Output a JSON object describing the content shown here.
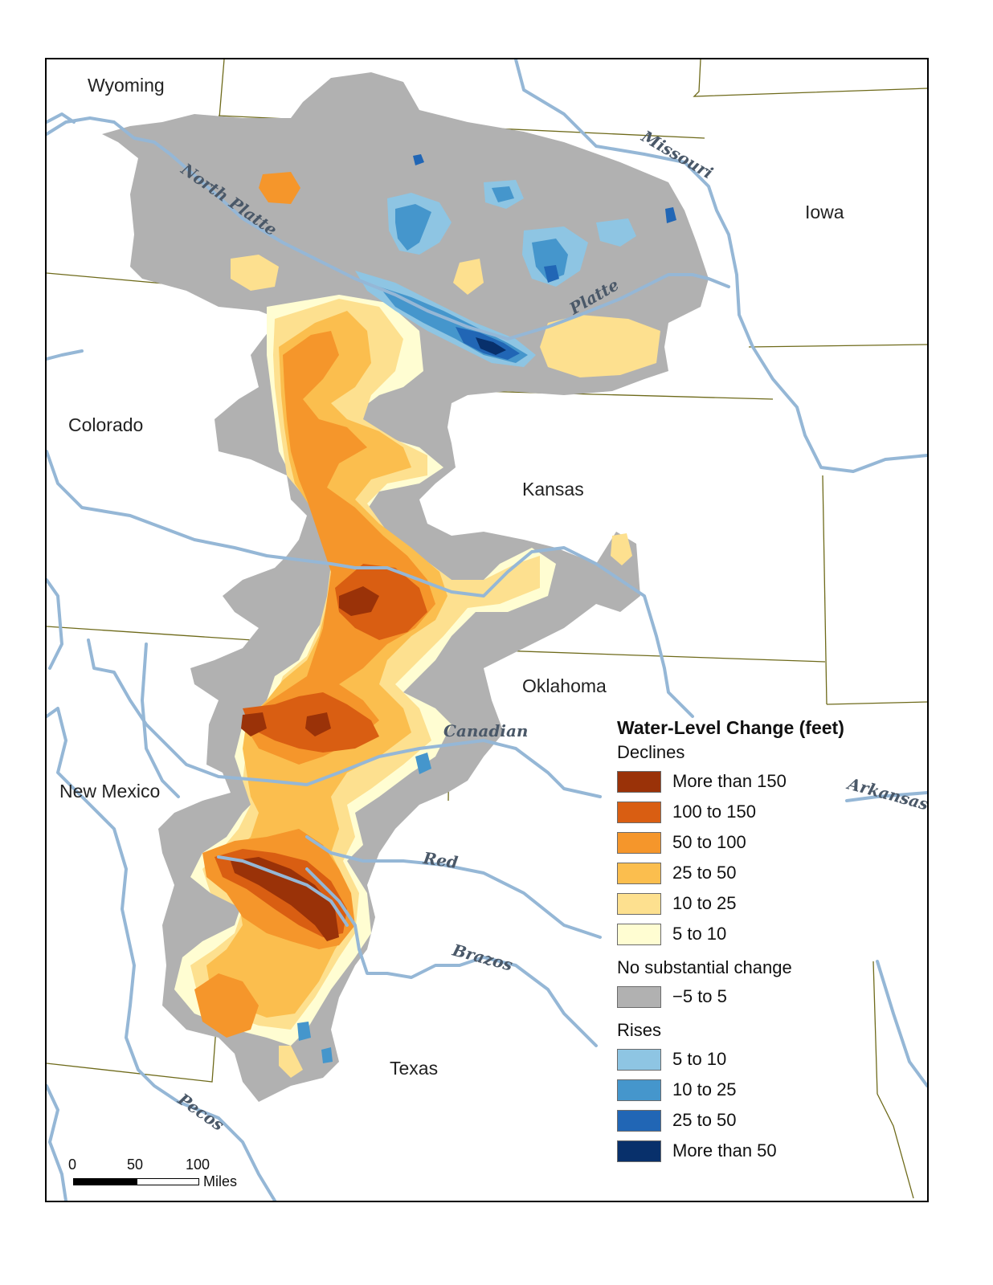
{
  "map": {
    "state_labels": [
      "Wyoming",
      "Iowa",
      "Colorado",
      "Kansas",
      "Oklahoma",
      "New Mexico",
      "Texas"
    ],
    "river_labels": [
      "North Platte",
      "Platte",
      "Missouri",
      "Canadian",
      "Arkansas",
      "Red",
      "Brazos",
      "Pecos"
    ]
  },
  "legend": {
    "title": "Water-Level Change (feet)",
    "groups": [
      {
        "label": "Declines",
        "items": [
          {
            "label": "More than 150",
            "color": "#9a3208"
          },
          {
            "label": "100 to 150",
            "color": "#d95e12"
          },
          {
            "label": "50 to 100",
            "color": "#f5962b"
          },
          {
            "label": "25 to 50",
            "color": "#fbbe4e"
          },
          {
            "label": "10 to 25",
            "color": "#fde08f"
          },
          {
            "label": "5 to 10",
            "color": "#fffdd2"
          }
        ]
      },
      {
        "label": "No substantial change",
        "items": [
          {
            "label": "−5 to 5",
            "color": "#b1b1b1"
          }
        ]
      },
      {
        "label": "Rises",
        "items": [
          {
            "label": "5 to 10",
            "color": "#8ec5e3"
          },
          {
            "label": "10 to 25",
            "color": "#4596cc"
          },
          {
            "label": "25 to 50",
            "color": "#2166b5"
          },
          {
            "label": "More than 50",
            "color": "#08306b"
          }
        ]
      }
    ]
  },
  "scale_bar": {
    "ticks": [
      "0",
      "50",
      "100"
    ],
    "units": "Miles"
  },
  "colors": {
    "no_change": "#b1b1b1",
    "river": "#95b7d6",
    "boundary": "#6e6a1a"
  }
}
